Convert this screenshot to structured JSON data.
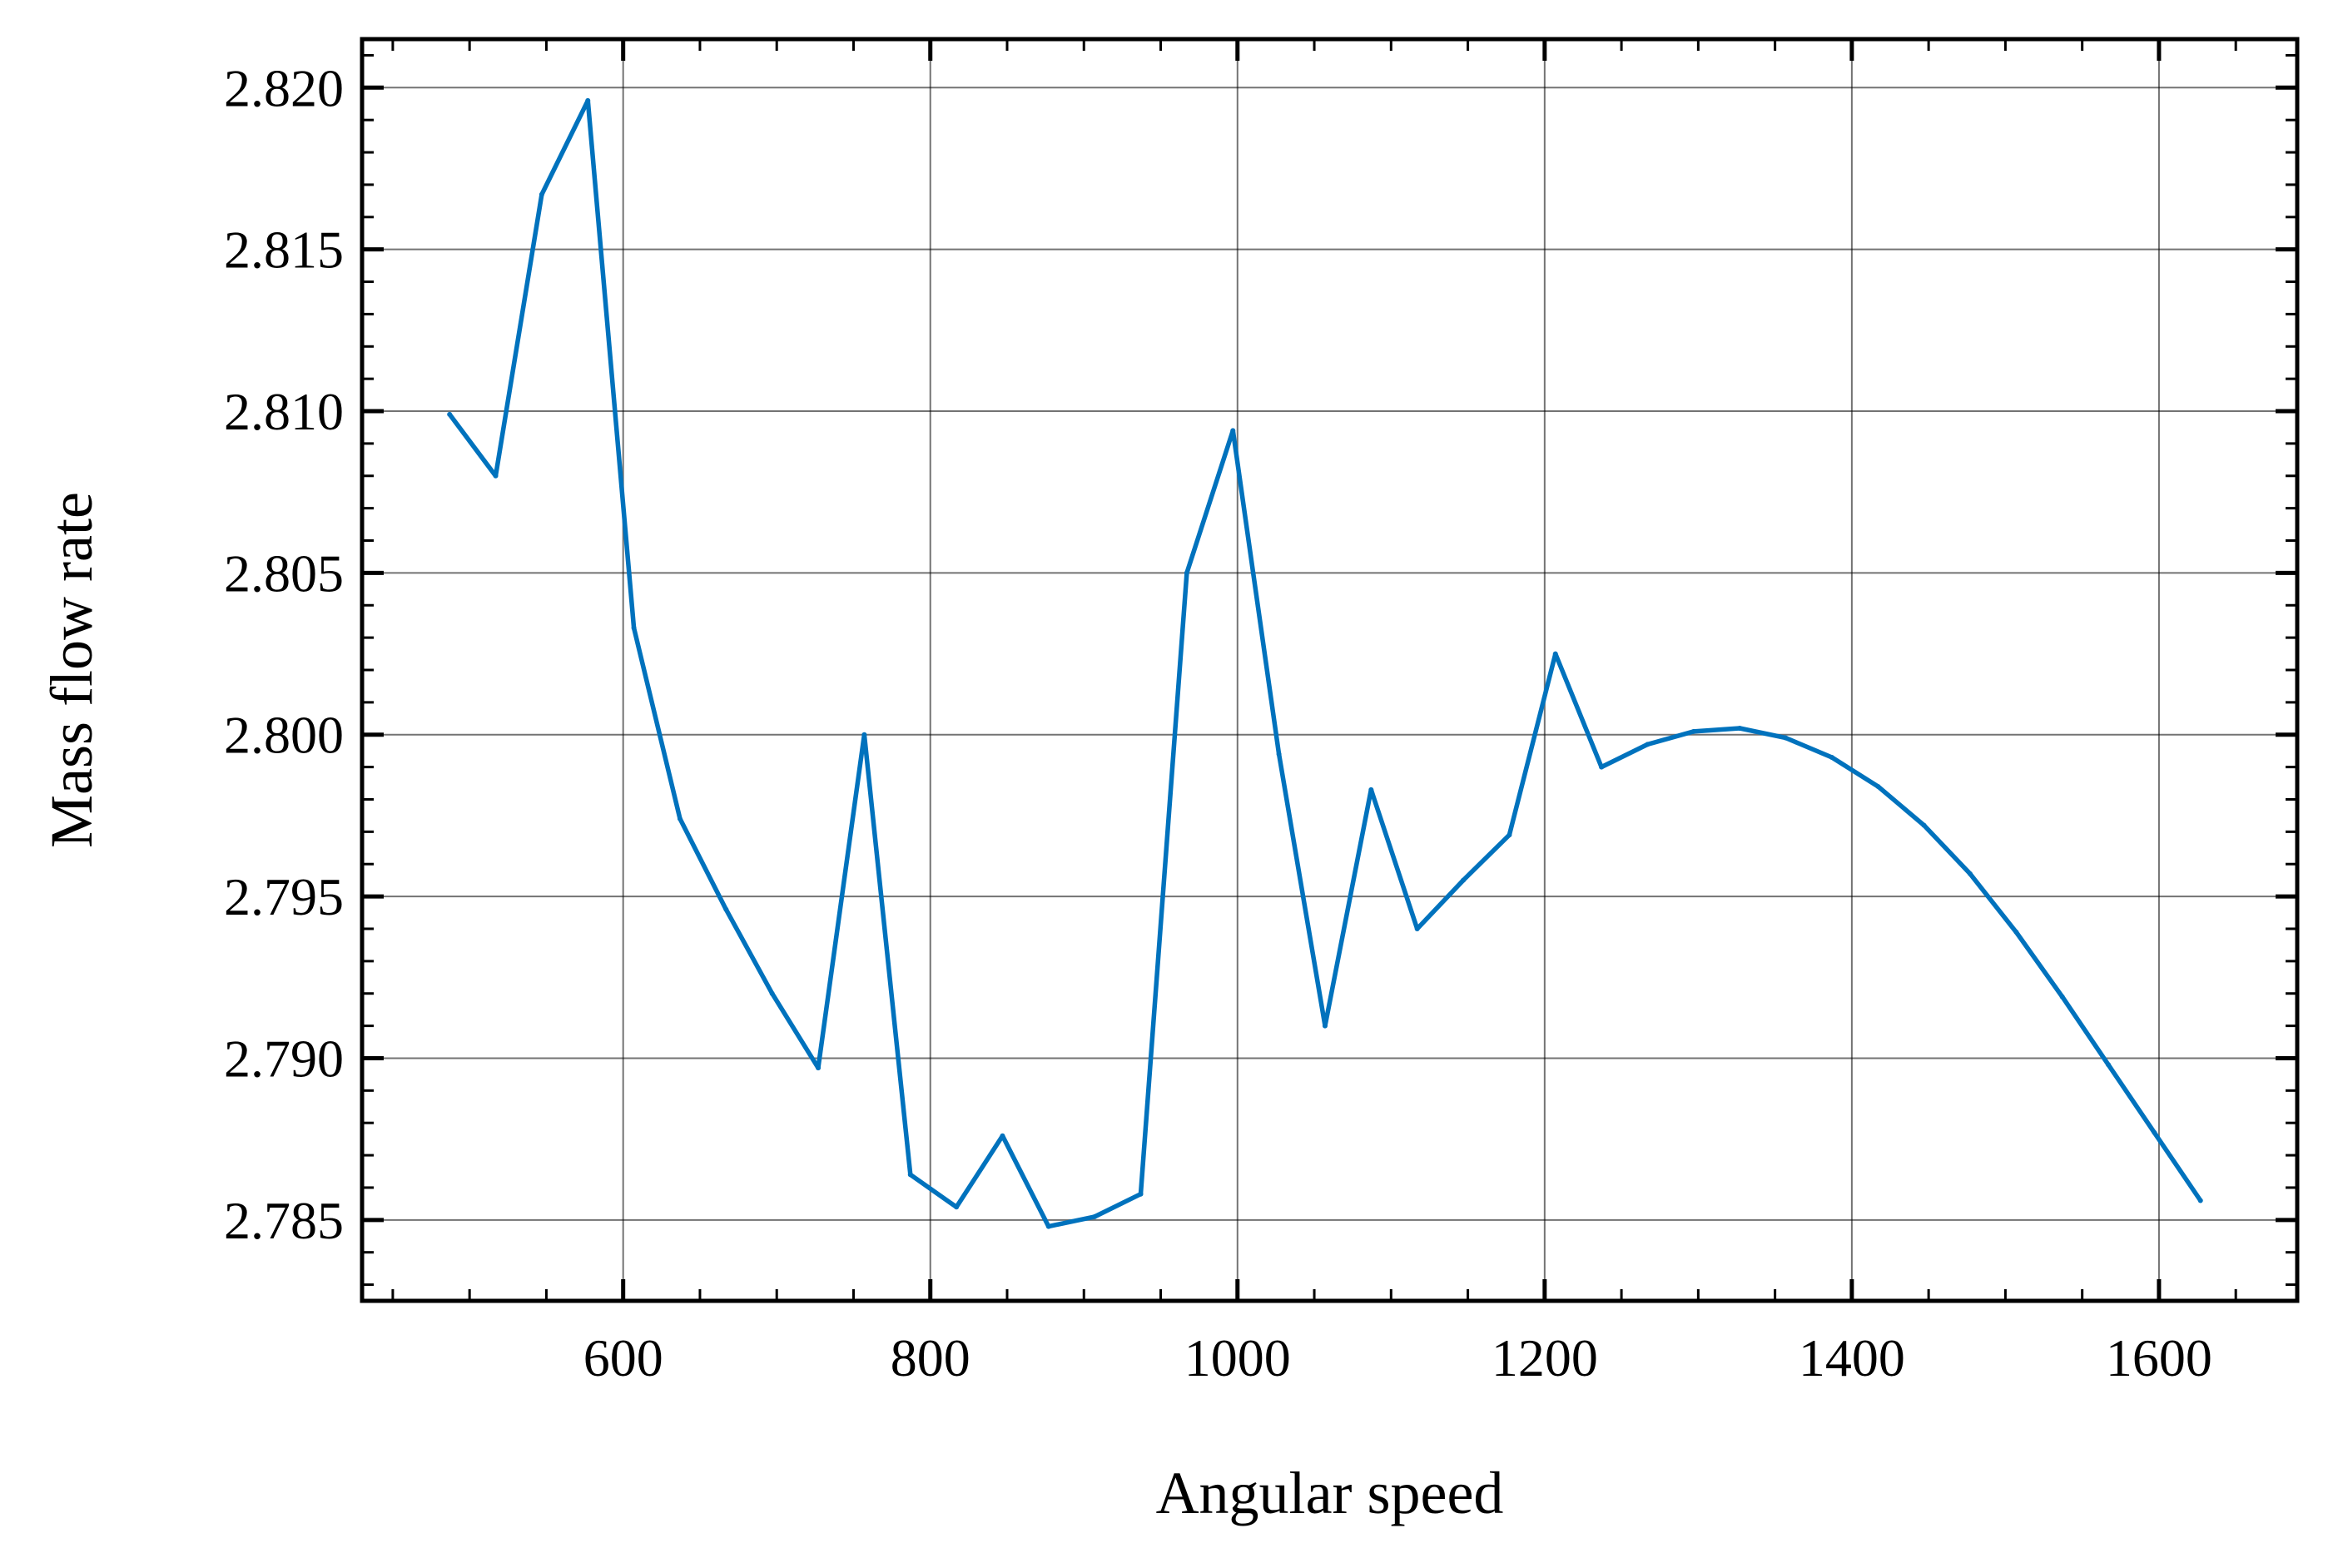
{
  "chart_data": {
    "type": "line",
    "title": "",
    "xlabel": "Angular speed",
    "ylabel": "Mass flow rate",
    "xlim": [
      430,
      1690
    ],
    "ylim": [
      2.7825,
      2.8215
    ],
    "grid": true,
    "x_ticks": [
      600,
      800,
      1000,
      1200,
      1400,
      1600
    ],
    "x_tick_labels": [
      "600",
      "800",
      "1000",
      "1200",
      "1400",
      "1600"
    ],
    "y_ticks": [
      2.785,
      2.79,
      2.795,
      2.8,
      2.805,
      2.81,
      2.815,
      2.82
    ],
    "y_tick_labels": [
      "2.785",
      "2.790",
      "2.795",
      "2.800",
      "2.805",
      "2.810",
      "2.815",
      "2.820"
    ],
    "x_minor_step": 50,
    "y_minor_step": 0.001,
    "colors": {
      "series": "#0072bd"
    },
    "series": [
      {
        "x": [
          487,
          517,
          547,
          577,
          607,
          637,
          667,
          697,
          727,
          757,
          787,
          817,
          847,
          877,
          907,
          937,
          967,
          997,
          1027,
          1057,
          1087,
          1117,
          1147,
          1177,
          1207,
          1237,
          1267,
          1297,
          1327,
          1357,
          1387,
          1417,
          1447,
          1477,
          1507,
          1537,
          1567,
          1597,
          1627
        ],
        "y": [
          2.8099,
          2.808,
          2.8167,
          2.8196,
          2.8033,
          2.7974,
          2.7946,
          2.792,
          2.7897,
          2.8,
          2.7864,
          2.7854,
          2.7876,
          2.7848,
          2.7851,
          2.7858,
          2.805,
          2.8094,
          2.7994,
          2.791,
          2.7983,
          2.794,
          2.7955,
          2.7969,
          2.8025,
          2.799,
          2.7997,
          2.8001,
          2.8002,
          2.7999,
          2.7993,
          2.7984,
          2.7972,
          2.7957,
          2.7939,
          2.7919,
          2.7898,
          2.7877,
          2.7856
        ]
      }
    ]
  }
}
